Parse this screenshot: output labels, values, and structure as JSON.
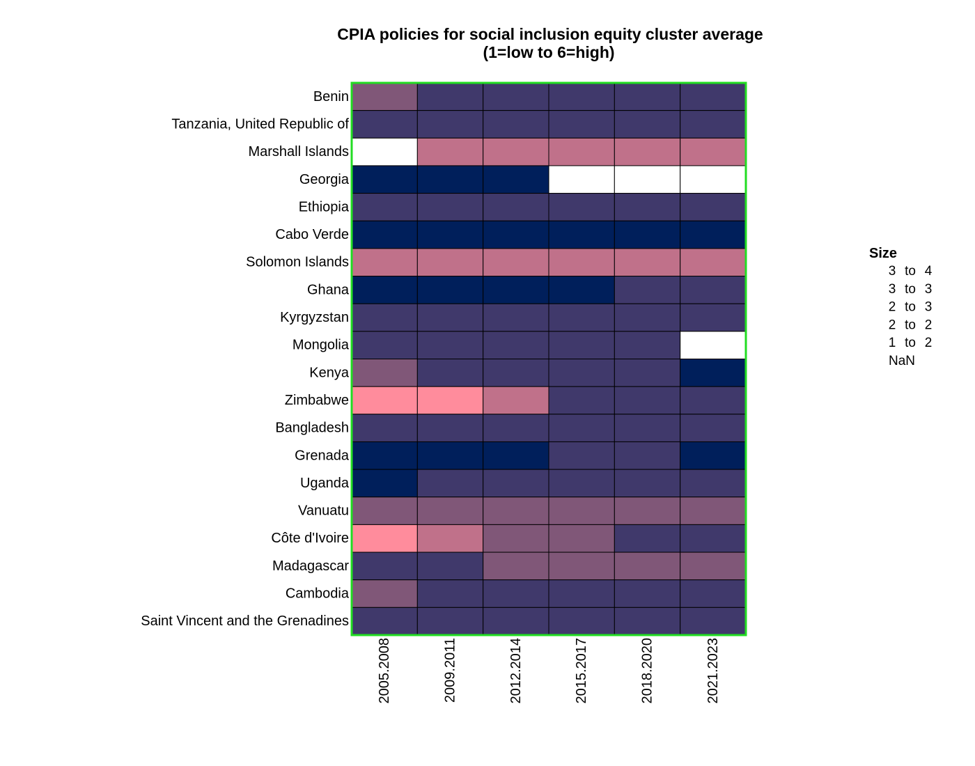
{
  "chart_data": {
    "type": "heatmap",
    "title": "CPIA policies for social inclusion equity cluster average",
    "subtitle": "(1=low to 6=high)",
    "columns": [
      "2005.2008",
      "2009.2011",
      "2012.2014",
      "2015.2017",
      "2018.2020",
      "2021.2023"
    ],
    "rows": [
      "Benin",
      "Tanzania, United Republic of",
      "Marshall Islands",
      "Georgia",
      "Ethiopia",
      "Cabo Verde",
      "Solomon Islands",
      "Ghana",
      "Kyrgyzstan",
      "Mongolia",
      "Kenya",
      "Zimbabwe",
      "Bangladesh",
      "Grenada",
      "Uganda",
      "Vanuatu",
      "Côte d'Ivoire",
      "Madagascar",
      "Cambodia",
      "Saint Vincent and the Grenadines"
    ],
    "cells": [
      [
        2,
        1,
        1,
        1,
        1,
        1
      ],
      [
        1,
        1,
        1,
        1,
        1,
        1
      ],
      [
        5,
        3,
        3,
        3,
        3,
        3
      ],
      [
        0,
        0,
        0,
        5,
        5,
        5
      ],
      [
        1,
        1,
        1,
        1,
        1,
        1
      ],
      [
        0,
        0,
        0,
        0,
        0,
        0
      ],
      [
        3,
        3,
        3,
        3,
        3,
        3
      ],
      [
        0,
        0,
        0,
        0,
        1,
        1
      ],
      [
        1,
        1,
        1,
        1,
        1,
        1
      ],
      [
        1,
        1,
        1,
        1,
        1,
        5
      ],
      [
        2,
        1,
        1,
        1,
        1,
        0
      ],
      [
        4,
        4,
        3,
        1,
        1,
        1
      ],
      [
        1,
        1,
        1,
        1,
        1,
        1
      ],
      [
        0,
        0,
        0,
        1,
        1,
        0
      ],
      [
        0,
        1,
        1,
        1,
        1,
        1
      ],
      [
        2,
        2,
        2,
        2,
        2,
        2
      ],
      [
        4,
        3,
        2,
        2,
        1,
        1
      ],
      [
        1,
        1,
        2,
        2,
        2,
        2
      ],
      [
        2,
        1,
        1,
        1,
        1,
        1
      ],
      [
        1,
        1,
        1,
        1,
        1,
        1
      ]
    ],
    "legend": {
      "title": "Size",
      "placement": "right",
      "entries": [
        {
          "from": "3",
          "to": "4",
          "color": "#001f5b"
        },
        {
          "from": "3",
          "to": "3",
          "color": "#40396b"
        },
        {
          "from": "2",
          "to": "3",
          "color": "#805778"
        },
        {
          "from": "2",
          "to": "2",
          "color": "#c0718a"
        },
        {
          "from": "1",
          "to": "2",
          "color": "#ff8c9c"
        },
        {
          "label": "NaN",
          "color": "#ffffff"
        }
      ],
      "to_word": "to"
    },
    "plot_border_color": "#22dd22",
    "cell_border_color": "#000000"
  }
}
